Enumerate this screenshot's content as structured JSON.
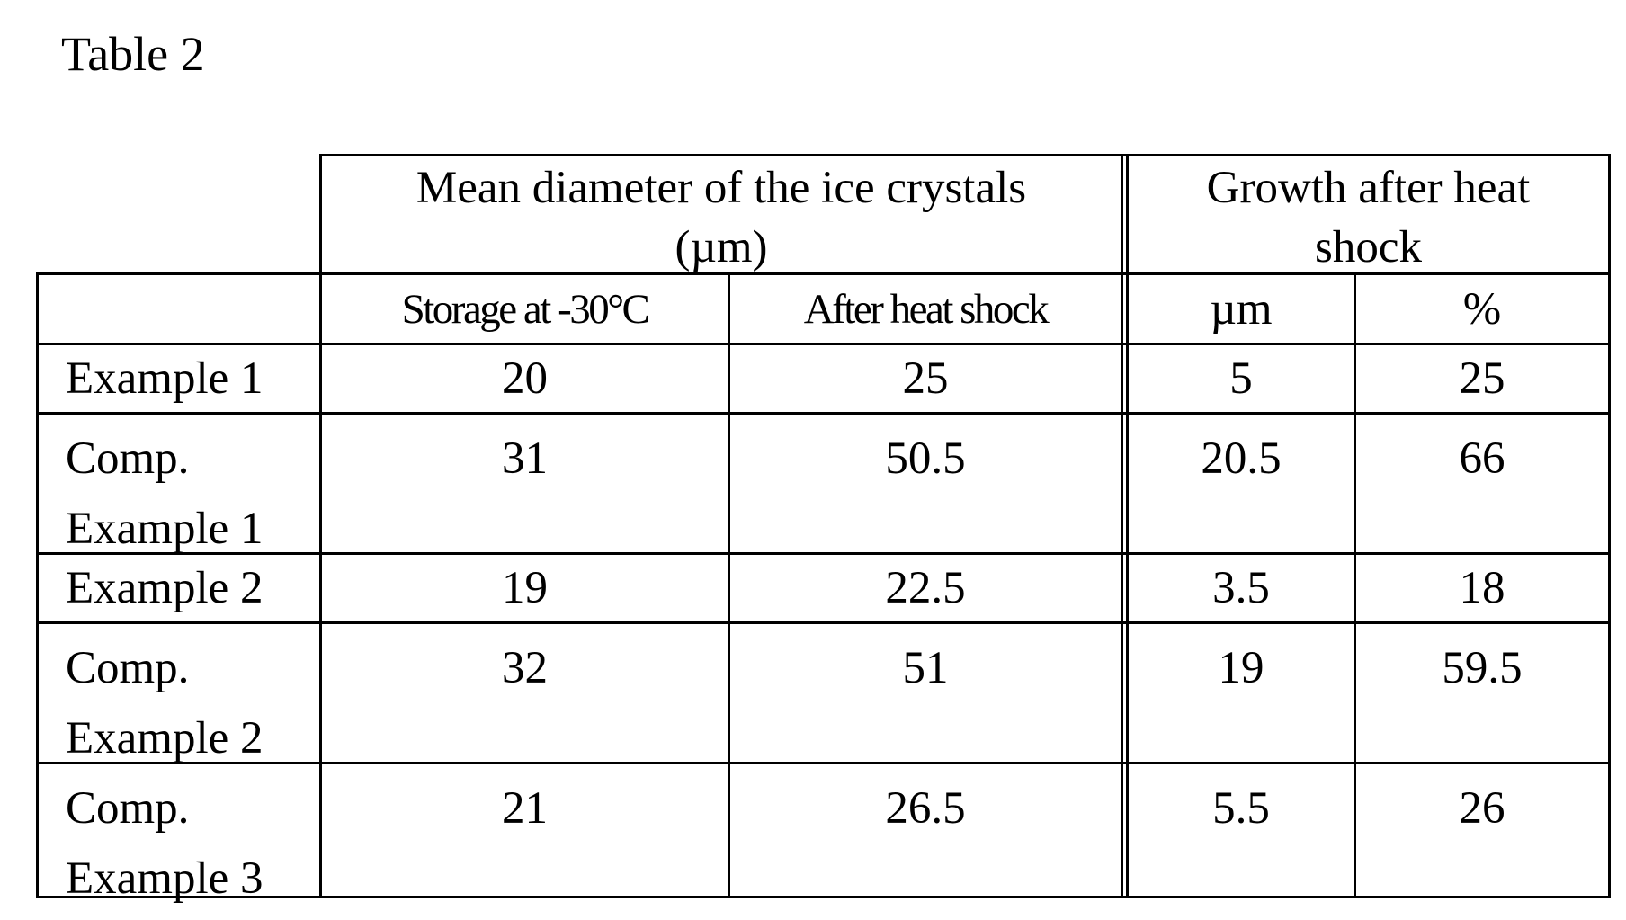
{
  "caption": "Table 2",
  "header": {
    "group_mean": "Mean diameter of the ice crystals (µm)",
    "group_growth": "Growth after heat shock",
    "col_storage": "Storage at -30°C",
    "col_after": "After heat shock",
    "col_um": "µm",
    "col_pct": "%"
  },
  "rows": [
    {
      "label": "Example 1",
      "storage": "20",
      "after": "25",
      "um": "5",
      "pct": "25"
    },
    {
      "label": "Comp. Example 1",
      "storage": "31",
      "after": "50.5",
      "um": "20.5",
      "pct": "66"
    },
    {
      "label": "Example 2",
      "storage": "19",
      "after": "22.5",
      "um": "3.5",
      "pct": "18"
    },
    {
      "label": "Comp. Example 2",
      "storage": "32",
      "after": "51",
      "um": "19",
      "pct": "59.5"
    },
    {
      "label": "Comp. Example 3",
      "storage": "21",
      "after": "26.5",
      "um": "5.5",
      "pct": "26"
    }
  ]
}
